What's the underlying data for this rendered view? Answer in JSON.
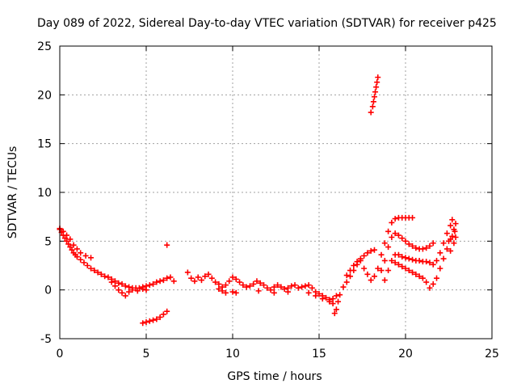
{
  "colors": {
    "series": "#ff0000",
    "grid": "#a0a0a0",
    "axis": "#000000",
    "background": "#ffffff"
  },
  "chart_data": {
    "type": "scatter",
    "title": "Day 089 of 2022, Sidereal Day-to-day VTEC variation (SDTVAR) for receiver p425",
    "xlabel": "GPS time / hours",
    "ylabel": "SDTVAR / TECUs",
    "xlim": [
      0,
      25
    ],
    "ylim": [
      -5,
      25
    ],
    "xticks": [
      "0",
      "5",
      "10",
      "15",
      "20",
      "25"
    ],
    "yticks": [
      "-5",
      "0",
      "5",
      "10",
      "15",
      "20",
      "25"
    ],
    "grid": true,
    "marker": "plus",
    "series": [
      {
        "name": "main-trace",
        "points": [
          [
            0.0,
            6.2
          ],
          [
            0.1,
            5.9
          ],
          [
            0.2,
            5.6
          ],
          [
            0.3,
            5.3
          ],
          [
            0.4,
            5.0
          ],
          [
            0.5,
            4.7
          ],
          [
            0.6,
            4.4
          ],
          [
            0.7,
            4.1
          ],
          [
            0.8,
            3.8
          ],
          [
            0.9,
            3.6
          ],
          [
            1.0,
            3.4
          ],
          [
            1.2,
            3.1
          ],
          [
            1.4,
            2.8
          ],
          [
            1.6,
            2.5
          ],
          [
            1.8,
            2.2
          ],
          [
            2.0,
            2.0
          ],
          [
            2.2,
            1.8
          ],
          [
            2.4,
            1.6
          ],
          [
            2.6,
            1.4
          ],
          [
            2.8,
            1.3
          ],
          [
            3.0,
            1.1
          ],
          [
            3.2,
            0.9
          ],
          [
            3.4,
            0.7
          ],
          [
            3.6,
            0.6
          ],
          [
            3.8,
            0.4
          ],
          [
            4.0,
            0.3
          ],
          [
            4.2,
            0.2
          ],
          [
            4.4,
            0.2
          ],
          [
            4.6,
            0.2
          ],
          [
            4.8,
            0.3
          ],
          [
            5.0,
            0.4
          ],
          [
            5.2,
            0.5
          ],
          [
            5.4,
            0.6
          ],
          [
            5.6,
            0.8
          ],
          [
            5.8,
            0.9
          ],
          [
            6.0,
            1.0
          ],
          [
            6.2,
            1.2
          ],
          [
            6.4,
            1.3
          ],
          [
            6.6,
            0.9
          ]
        ]
      },
      {
        "name": "upper-edge-early",
        "points": [
          [
            0.0,
            6.3
          ],
          [
            0.2,
            6.0
          ],
          [
            0.4,
            5.6
          ],
          [
            0.6,
            5.2
          ],
          [
            0.8,
            4.6
          ],
          [
            1.0,
            4.2
          ],
          [
            1.2,
            3.8
          ],
          [
            1.5,
            3.5
          ],
          [
            1.8,
            3.3
          ]
        ]
      },
      {
        "name": "lower-dip",
        "points": [
          [
            3.0,
            0.8
          ],
          [
            3.2,
            0.4
          ],
          [
            3.4,
            0.0
          ],
          [
            3.6,
            -0.3
          ],
          [
            3.8,
            -0.6
          ],
          [
            4.0,
            -0.2
          ],
          [
            4.2,
            0.0
          ],
          [
            4.5,
            -0.1
          ],
          [
            4.8,
            0.1
          ],
          [
            5.0,
            0.0
          ]
        ]
      },
      {
        "name": "negative-segment",
        "points": [
          [
            4.8,
            -3.4
          ],
          [
            5.0,
            -3.3
          ],
          [
            5.2,
            -3.2
          ],
          [
            5.4,
            -3.1
          ],
          [
            5.6,
            -3.0
          ],
          [
            5.8,
            -2.8
          ],
          [
            6.0,
            -2.5
          ],
          [
            6.2,
            -2.2
          ]
        ]
      },
      {
        "name": "outlier",
        "points": [
          [
            6.2,
            4.6
          ]
        ]
      },
      {
        "name": "mid-band",
        "points": [
          [
            7.4,
            1.8
          ],
          [
            7.6,
            1.2
          ],
          [
            7.8,
            0.9
          ],
          [
            8.0,
            1.3
          ],
          [
            8.2,
            1.0
          ],
          [
            8.4,
            1.4
          ],
          [
            8.6,
            1.6
          ],
          [
            8.8,
            1.2
          ],
          [
            9.0,
            0.8
          ],
          [
            9.2,
            0.6
          ],
          [
            9.4,
            0.3
          ],
          [
            9.6,
            0.5
          ],
          [
            9.8,
            0.9
          ],
          [
            10.0,
            1.3
          ],
          [
            10.2,
            1.1
          ],
          [
            10.4,
            0.8
          ],
          [
            10.6,
            0.5
          ],
          [
            10.8,
            0.3
          ],
          [
            11.0,
            0.4
          ],
          [
            11.2,
            0.6
          ],
          [
            11.4,
            0.9
          ],
          [
            11.6,
            0.7
          ],
          [
            11.8,
            0.5
          ],
          [
            12.0,
            0.2
          ],
          [
            12.2,
            0.0
          ],
          [
            12.4,
            0.3
          ],
          [
            12.6,
            0.5
          ],
          [
            12.8,
            0.3
          ],
          [
            13.0,
            0.1
          ],
          [
            13.2,
            0.2
          ],
          [
            13.4,
            0.4
          ],
          [
            13.6,
            0.5
          ],
          [
            13.8,
            0.2
          ],
          [
            14.0,
            0.3
          ],
          [
            14.2,
            0.4
          ],
          [
            14.4,
            0.5
          ],
          [
            14.6,
            0.2
          ],
          [
            14.8,
            -0.2
          ],
          [
            15.0,
            -0.4
          ],
          [
            15.2,
            -0.6
          ],
          [
            15.4,
            -0.8
          ],
          [
            15.6,
            -1.0
          ],
          [
            15.8,
            -0.9
          ],
          [
            16.0,
            -0.6
          ]
        ]
      },
      {
        "name": "mid-lower",
        "points": [
          [
            9.2,
            0.1
          ],
          [
            9.4,
            -0.1
          ],
          [
            9.6,
            -0.3
          ],
          [
            10.0,
            -0.2
          ],
          [
            10.2,
            -0.3
          ],
          [
            11.5,
            -0.1
          ],
          [
            12.4,
            -0.3
          ],
          [
            13.2,
            -0.2
          ],
          [
            14.4,
            -0.3
          ],
          [
            14.8,
            -0.6
          ],
          [
            15.2,
            -0.9
          ],
          [
            15.6,
            -1.2
          ],
          [
            15.8,
            -1.4
          ]
        ]
      },
      {
        "name": "late-cluster",
        "points": [
          [
            15.9,
            -2.4
          ],
          [
            16.0,
            -2.0
          ],
          [
            16.1,
            -1.2
          ],
          [
            16.2,
            -0.5
          ],
          [
            16.4,
            0.3
          ],
          [
            16.6,
            0.8
          ],
          [
            16.8,
            1.4
          ],
          [
            17.0,
            2.0
          ],
          [
            17.2,
            2.6
          ],
          [
            17.4,
            3.0
          ],
          [
            17.6,
            3.5
          ],
          [
            17.8,
            3.8
          ],
          [
            18.0,
            4.0
          ],
          [
            18.2,
            4.1
          ],
          [
            16.6,
            1.5
          ],
          [
            16.8,
            2.0
          ],
          [
            17.0,
            2.5
          ],
          [
            17.2,
            2.9
          ],
          [
            17.4,
            3.2
          ],
          [
            17.6,
            2.2
          ],
          [
            17.8,
            1.6
          ],
          [
            18.0,
            1.0
          ],
          [
            18.2,
            1.4
          ]
        ]
      },
      {
        "name": "high-streak",
        "points": [
          [
            18.0,
            18.2
          ],
          [
            18.1,
            18.8
          ],
          [
            18.15,
            19.3
          ],
          [
            18.2,
            19.8
          ],
          [
            18.25,
            20.3
          ],
          [
            18.3,
            20.8
          ],
          [
            18.35,
            21.3
          ],
          [
            18.4,
            21.8
          ]
        ]
      },
      {
        "name": "band-top",
        "points": [
          [
            18.4,
            2.2
          ],
          [
            18.6,
            3.6
          ],
          [
            18.8,
            4.8
          ],
          [
            19.0,
            6.0
          ],
          [
            19.2,
            6.9
          ],
          [
            19.4,
            7.3
          ],
          [
            19.6,
            7.4
          ],
          [
            19.8,
            7.4
          ],
          [
            20.0,
            7.4
          ],
          [
            20.2,
            7.4
          ],
          [
            20.4,
            7.4
          ]
        ]
      },
      {
        "name": "band-upper",
        "points": [
          [
            18.6,
            2.0
          ],
          [
            18.8,
            3.0
          ],
          [
            19.0,
            4.4
          ],
          [
            19.2,
            5.4
          ],
          [
            19.4,
            5.8
          ],
          [
            19.6,
            5.6
          ],
          [
            19.8,
            5.3
          ],
          [
            20.0,
            5.0
          ],
          [
            20.2,
            4.7
          ],
          [
            20.4,
            4.5
          ],
          [
            20.6,
            4.3
          ],
          [
            20.8,
            4.2
          ],
          [
            21.0,
            4.2
          ],
          [
            21.2,
            4.3
          ],
          [
            21.4,
            4.5
          ],
          [
            21.6,
            4.8
          ]
        ]
      },
      {
        "name": "band-middle",
        "points": [
          [
            18.8,
            1.0
          ],
          [
            19.0,
            2.0
          ],
          [
            19.2,
            3.0
          ],
          [
            19.4,
            3.6
          ],
          [
            19.6,
            3.6
          ],
          [
            19.8,
            3.4
          ],
          [
            20.0,
            3.3
          ],
          [
            20.2,
            3.2
          ],
          [
            20.4,
            3.1
          ],
          [
            20.6,
            3.0
          ],
          [
            20.8,
            3.0
          ],
          [
            21.0,
            2.9
          ],
          [
            21.2,
            2.9
          ],
          [
            21.4,
            2.8
          ],
          [
            21.6,
            2.6
          ],
          [
            21.8,
            3.0
          ],
          [
            22.0,
            3.8
          ],
          [
            22.2,
            4.8
          ],
          [
            22.4,
            5.8
          ],
          [
            22.6,
            6.6
          ],
          [
            22.7,
            7.2
          ]
        ]
      },
      {
        "name": "band-lower",
        "points": [
          [
            19.4,
            2.8
          ],
          [
            19.6,
            2.6
          ],
          [
            19.8,
            2.4
          ],
          [
            20.0,
            2.2
          ],
          [
            20.2,
            2.0
          ],
          [
            20.4,
            1.8
          ],
          [
            20.6,
            1.6
          ],
          [
            20.8,
            1.4
          ],
          [
            21.0,
            1.2
          ],
          [
            21.2,
            0.8
          ],
          [
            21.4,
            0.2
          ],
          [
            21.6,
            0.6
          ],
          [
            21.8,
            1.2
          ],
          [
            22.0,
            2.2
          ],
          [
            22.2,
            3.2
          ],
          [
            22.4,
            4.2
          ],
          [
            22.6,
            5.2
          ],
          [
            22.8,
            6.2
          ],
          [
            22.9,
            6.8
          ]
        ]
      },
      {
        "name": "band-end",
        "points": [
          [
            22.6,
            4.0
          ],
          [
            22.8,
            4.8
          ],
          [
            22.9,
            5.4
          ],
          [
            22.85,
            6.0
          ],
          [
            22.7,
            5.5
          ],
          [
            22.5,
            5.0
          ]
        ]
      }
    ]
  }
}
